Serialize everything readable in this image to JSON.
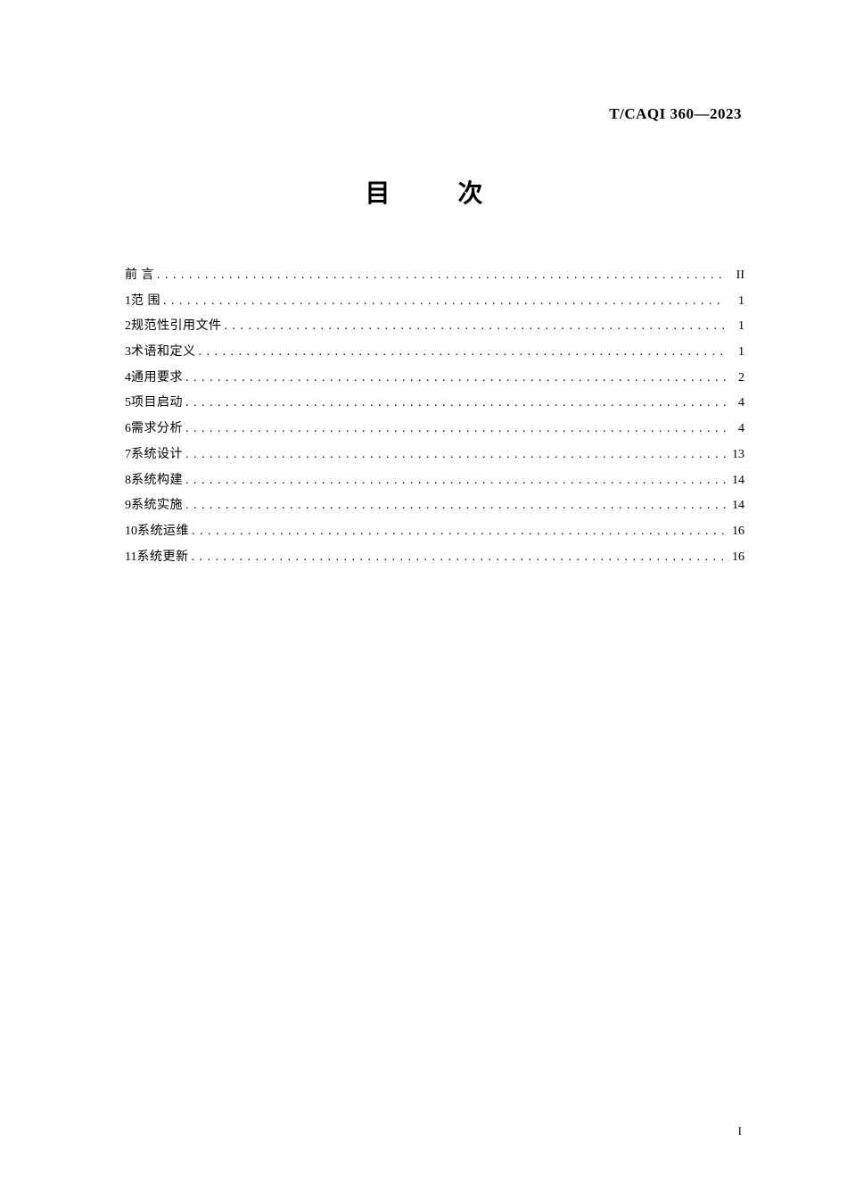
{
  "document": {
    "standard_code": "T/CAQI 360—2023",
    "title": "目　次",
    "page_number": "I"
  },
  "toc": {
    "entries": [
      {
        "num": "",
        "text": "前言",
        "page": "II",
        "spaced": true
      },
      {
        "num": "1",
        "text": "范围",
        "page": "1",
        "spaced": true
      },
      {
        "num": "2",
        "text": "规范性引用文件",
        "page": "1",
        "spaced": false
      },
      {
        "num": "3",
        "text": "术语和定义",
        "page": "1",
        "spaced": false
      },
      {
        "num": "4",
        "text": "通用要求",
        "page": "2",
        "spaced": false
      },
      {
        "num": "5",
        "text": "项目启动",
        "page": "4",
        "spaced": false
      },
      {
        "num": "6",
        "text": "需求分析",
        "page": "4",
        "spaced": false
      },
      {
        "num": "7",
        "text": "系统设计",
        "page": "13",
        "spaced": false
      },
      {
        "num": "8",
        "text": "系统构建",
        "page": "14",
        "spaced": false
      },
      {
        "num": "9",
        "text": "系统实施",
        "page": "14",
        "spaced": false
      },
      {
        "num": "10",
        "text": "系统运维",
        "page": "16",
        "spaced": false
      },
      {
        "num": "11",
        "text": "系统更新",
        "page": "16",
        "spaced": false
      }
    ]
  },
  "styling": {
    "background_color": "#ffffff",
    "text_color": "#000000",
    "body_font_size": 14,
    "title_font_size": 28,
    "header_font_size": 17,
    "line_height": 2.05
  }
}
